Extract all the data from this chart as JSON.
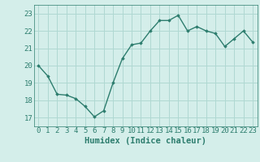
{
  "x": [
    0,
    1,
    2,
    3,
    4,
    5,
    6,
    7,
    8,
    9,
    10,
    11,
    12,
    13,
    14,
    15,
    16,
    17,
    18,
    19,
    20,
    21,
    22,
    23
  ],
  "y": [
    20.0,
    19.4,
    18.35,
    18.3,
    18.1,
    17.65,
    17.05,
    17.4,
    19.0,
    20.4,
    21.2,
    21.3,
    22.0,
    22.6,
    22.6,
    22.9,
    22.0,
    22.25,
    22.0,
    21.85,
    21.1,
    21.55,
    22.0,
    21.35
  ],
  "line_color": "#2d7d6e",
  "marker": "D",
  "marker_size": 1.8,
  "bg_color": "#d4eeea",
  "grid_color": "#afd8d2",
  "xlabel": "Humidex (Indice chaleur)",
  "ylim": [
    16.5,
    23.5
  ],
  "xlim": [
    -0.5,
    23.5
  ],
  "yticks": [
    17,
    18,
    19,
    20,
    21,
    22,
    23
  ],
  "xticks": [
    0,
    1,
    2,
    3,
    4,
    5,
    6,
    7,
    8,
    9,
    10,
    11,
    12,
    13,
    14,
    15,
    16,
    17,
    18,
    19,
    20,
    21,
    22,
    23
  ],
  "tick_fontsize": 6.5,
  "xlabel_fontsize": 7.5,
  "line_width": 1.0
}
